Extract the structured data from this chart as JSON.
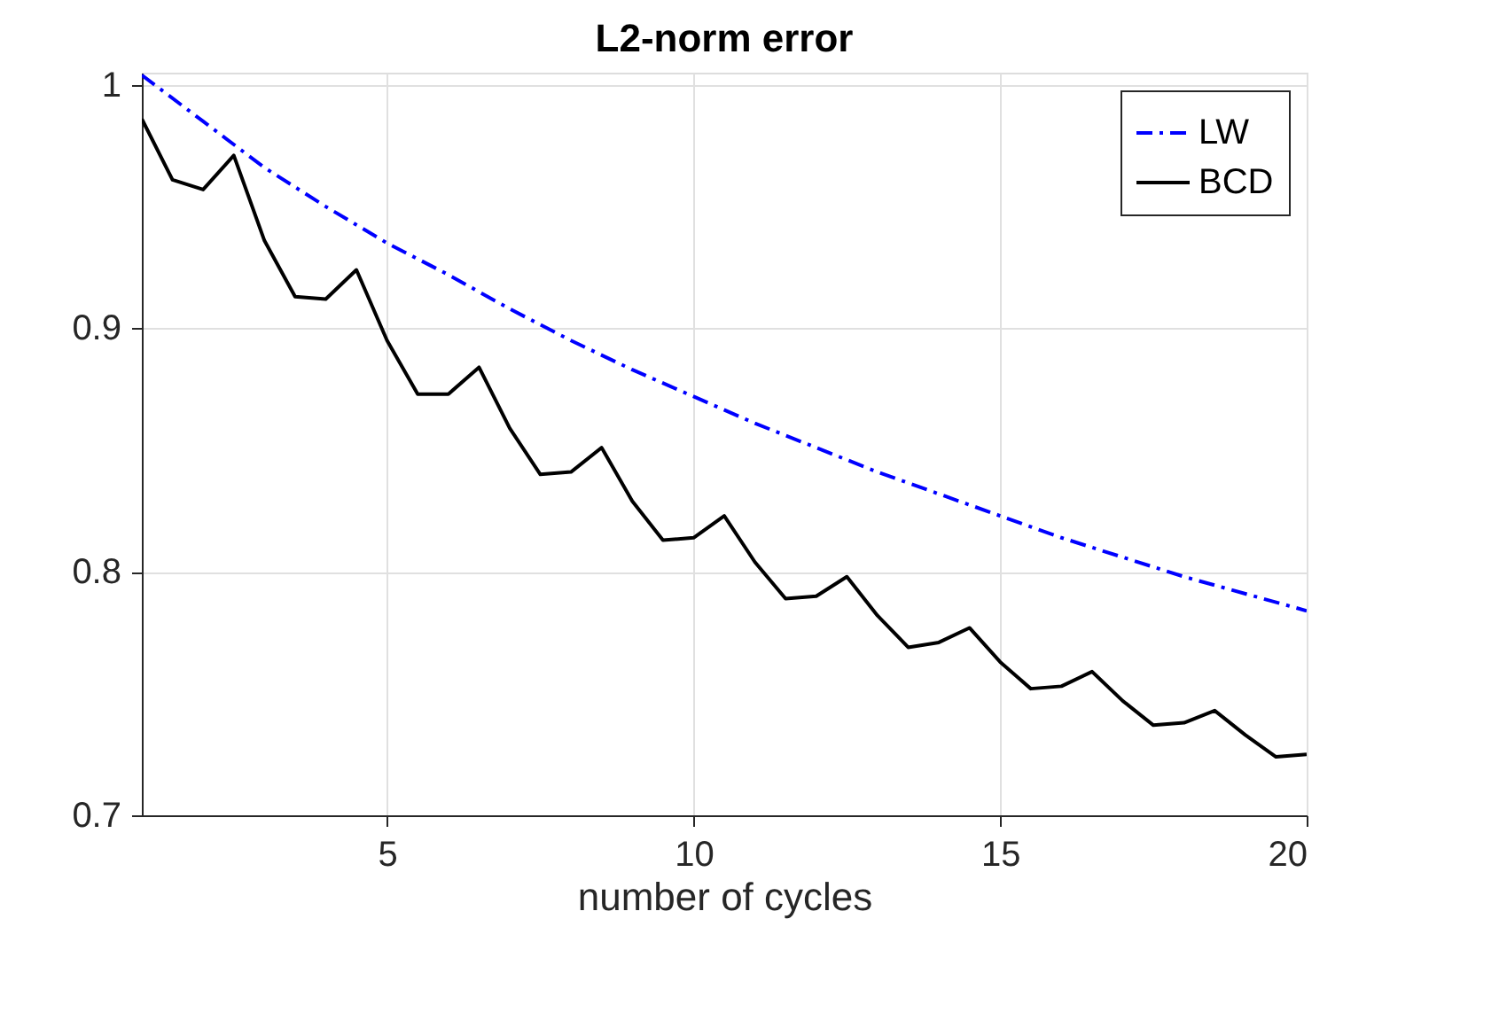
{
  "chart_data": {
    "type": "line",
    "title": "L2-norm error",
    "xlabel": "number of cycles",
    "xlim": [
      1,
      20
    ],
    "xticks": [
      5,
      10,
      15,
      20
    ],
    "ylim": [
      0.7,
      1.005
    ],
    "yticks": [
      0.7,
      0.8,
      0.9,
      1
    ],
    "grid": true,
    "legend": "top right",
    "series": [
      {
        "name": "LW",
        "color": "#0000ff",
        "line_style": "dashdot",
        "x": [
          1,
          2,
          3,
          4,
          5,
          6,
          7,
          8,
          9,
          10,
          11,
          12,
          13,
          14,
          15,
          16,
          17,
          18,
          19,
          20
        ],
        "values": [
          1.004,
          0.985,
          0.966,
          0.95,
          0.935,
          0.922,
          0.908,
          0.895,
          0.883,
          0.872,
          0.861,
          0.851,
          0.841,
          0.832,
          0.823,
          0.814,
          0.806,
          0.798,
          0.791,
          0.784
        ]
      },
      {
        "name": "BCD",
        "color": "#000000",
        "line_style": "solid",
        "x": [
          1,
          1.5,
          2,
          2.5,
          3,
          3.5,
          4,
          4.5,
          5,
          5.5,
          6,
          6.5,
          7,
          7.5,
          8,
          8.5,
          9,
          9.5,
          10,
          10.5,
          11,
          11.5,
          12,
          12.5,
          13,
          13.5,
          14,
          14.5,
          15,
          15.5,
          16,
          16.5,
          17,
          17.5,
          18,
          18.5,
          19,
          19.5,
          20
        ],
        "values": [
          0.986,
          0.961,
          0.957,
          0.971,
          0.936,
          0.913,
          0.912,
          0.924,
          0.895,
          0.873,
          0.873,
          0.884,
          0.859,
          0.84,
          0.841,
          0.851,
          0.829,
          0.813,
          0.814,
          0.823,
          0.804,
          0.789,
          0.79,
          0.798,
          0.782,
          0.769,
          0.771,
          0.777,
          0.763,
          0.752,
          0.753,
          0.759,
          0.747,
          0.737,
          0.738,
          0.743,
          0.733,
          0.724,
          0.725
        ]
      }
    ]
  }
}
